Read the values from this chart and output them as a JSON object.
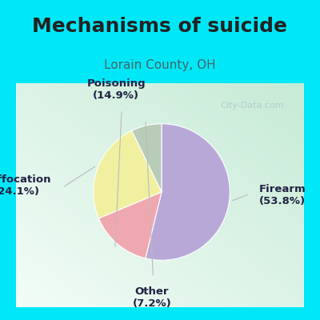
{
  "title": "Mechanisms of suicide",
  "subtitle": "Lorain County, OH",
  "labels": [
    "Firearm",
    "Poisoning",
    "Suffocation",
    "Other"
  ],
  "values": [
    53.8,
    14.9,
    24.1,
    7.2
  ],
  "colors": [
    "#b8a8d8",
    "#f0a8b0",
    "#f0f0a0",
    "#b8ccb8"
  ],
  "background_cyan": "#00e8f8",
  "title_color": "#222222",
  "subtitle_color": "#446666",
  "label_color": "#222244",
  "watermark_text": "City-Data.com",
  "title_fontsize": 18,
  "subtitle_fontsize": 11,
  "label_fontsize": 9.5
}
